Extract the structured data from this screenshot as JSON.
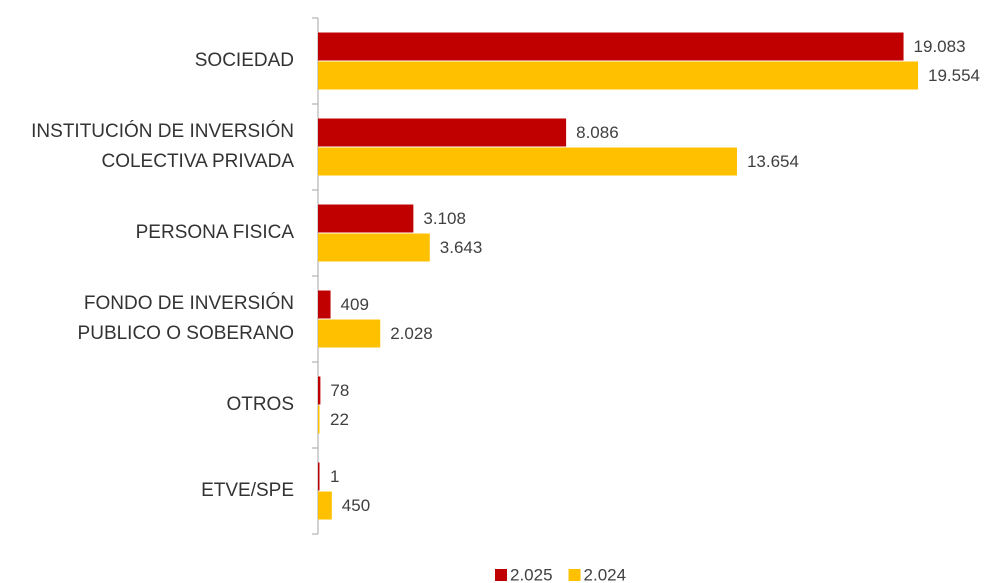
{
  "chart_data": {
    "type": "hbar",
    "categories": [
      [
        "SOCIEDAD"
      ],
      [
        "INSTITUCIÓN DE INVERSIÓN",
        "COLECTIVA PRIVADA"
      ],
      [
        "PERSONA FISICA"
      ],
      [
        "FONDO DE INVERSIÓN",
        "PUBLICO O SOBERANO"
      ],
      [
        "OTROS"
      ],
      [
        "ETVE/SPE"
      ]
    ],
    "series": [
      {
        "name": "2.025",
        "color": "#c00000",
        "values": [
          19083,
          8086,
          3108,
          409,
          78,
          1
        ],
        "value_labels": [
          "19.083",
          "8.086",
          "3.108",
          "409",
          "78",
          "1"
        ]
      },
      {
        "name": "2.024",
        "color": "#ffc000",
        "values": [
          19554,
          13654,
          3643,
          2028,
          22,
          450
        ],
        "value_labels": [
          "19.554",
          "13.654",
          "3.643",
          "2.028",
          "22",
          "450"
        ]
      }
    ],
    "legend": "bottom"
  }
}
